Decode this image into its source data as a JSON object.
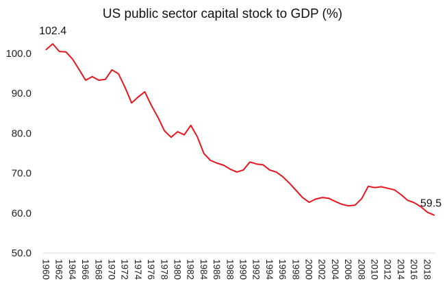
{
  "chart_data": {
    "type": "line",
    "title": "US public sector capital stock to GDP (%)",
    "xlabel": "",
    "ylabel": "",
    "ylim": [
      50,
      102.4
    ],
    "y_ticks": [
      50,
      60,
      70,
      80,
      90,
      100
    ],
    "y_tick_labels": [
      "50.0",
      "60.0",
      "70.0",
      "80.0",
      "90.0",
      "100.0"
    ],
    "x_tick_labels": [
      "1960",
      "1962",
      "1964",
      "1966",
      "1968",
      "1970",
      "1972",
      "1974",
      "1976",
      "1978",
      "1980",
      "1982",
      "1984",
      "1986",
      "1988",
      "1990",
      "1992",
      "1994",
      "1996",
      "1998",
      "2000",
      "2002",
      "2004",
      "2006",
      "2008",
      "2010",
      "2012",
      "2014",
      "2016",
      "2018"
    ],
    "grid": false,
    "legend": "none",
    "series": [
      {
        "name": "US public sector capital stock to GDP (%)",
        "color": "#e8141c",
        "x": [
          1960,
          1961,
          1962,
          1963,
          1964,
          1965,
          1966,
          1967,
          1968,
          1969,
          1970,
          1971,
          1972,
          1973,
          1974,
          1975,
          1976,
          1977,
          1978,
          1979,
          1980,
          1981,
          1982,
          1983,
          1984,
          1985,
          1986,
          1987,
          1988,
          1989,
          1990,
          1991,
          1992,
          1993,
          1994,
          1995,
          1996,
          1997,
          1998,
          1999,
          2000,
          2001,
          2002,
          2003,
          2004,
          2005,
          2006,
          2007,
          2008,
          2009,
          2010,
          2011,
          2012,
          2013,
          2014,
          2015,
          2016,
          2017,
          2018,
          2019
        ],
        "values": [
          101.0,
          102.4,
          100.5,
          100.4,
          98.6,
          96.0,
          93.3,
          94.2,
          93.3,
          93.5,
          95.9,
          94.9,
          91.5,
          87.6,
          89.1,
          90.4,
          87.0,
          84.0,
          80.6,
          79.0,
          80.4,
          79.6,
          82.0,
          79.1,
          74.9,
          73.2,
          72.5,
          72.0,
          71.0,
          70.3,
          70.8,
          72.8,
          72.3,
          72.1,
          70.8,
          70.3,
          69.1,
          67.5,
          65.7,
          63.9,
          62.7,
          63.5,
          63.9,
          63.7,
          62.9,
          62.2,
          61.8,
          62.0,
          63.6,
          66.7,
          66.4,
          66.6,
          66.2,
          65.8,
          64.6,
          63.2,
          62.6,
          61.6,
          60.2,
          59.5
        ]
      }
    ],
    "annotations": [
      {
        "label": "102.4",
        "x": 1961,
        "y": 102.4
      },
      {
        "label": "59.5",
        "x": 2019,
        "y": 59.5
      }
    ]
  }
}
